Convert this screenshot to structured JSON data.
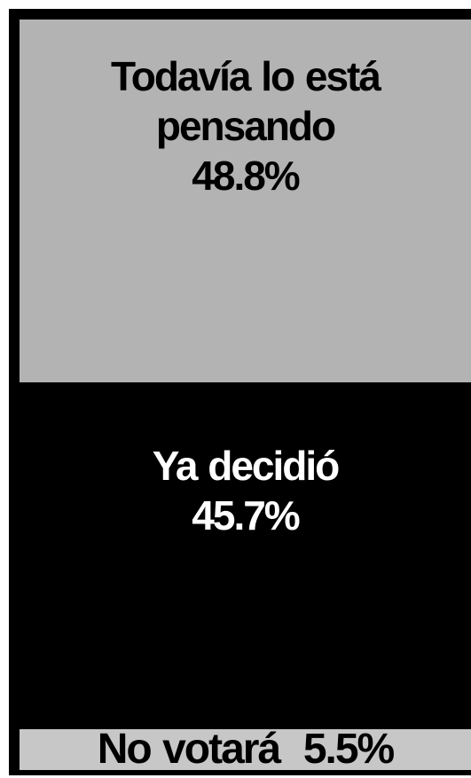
{
  "chart_data": {
    "type": "bar",
    "orientation": "stacked-vertical-100",
    "categories": [
      "Todavía lo está pensando",
      "Ya decidió",
      "No votará"
    ],
    "values": [
      48.8,
      45.7,
      5.5
    ],
    "unit": "%",
    "segments": [
      {
        "name": "Todavía lo está pensando",
        "value": 48.8,
        "lines": [
          "Todavía lo está",
          "pensando",
          "48.8%"
        ],
        "color": "#b3b3b3",
        "text_color": "#000000",
        "gap_after": true
      },
      {
        "name": "Ya decidió",
        "value": 45.7,
        "lines": [
          "Ya decidió",
          "45.7%"
        ],
        "color": "#000000",
        "text_color": "#ffffff",
        "gap_after": false
      },
      {
        "name": "No votará",
        "value": 5.5,
        "lines": [
          "No votará  5.5%"
        ],
        "color": "#c7c7c7",
        "text_color": "#000000",
        "gap_after": false
      }
    ],
    "title": "",
    "xlabel": "",
    "ylabel": "",
    "ylim": [
      0,
      100
    ],
    "grid": false,
    "legend": "none"
  },
  "colors": {
    "frame": "#000000",
    "background": "#ffffff"
  }
}
